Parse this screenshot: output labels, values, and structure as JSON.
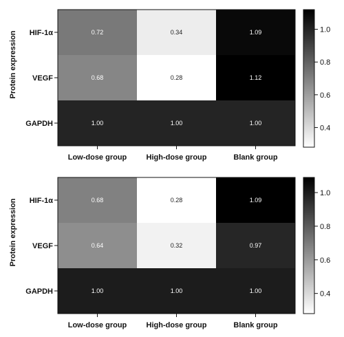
{
  "chart_data": [
    {
      "type": "heatmap",
      "ylabel": "Protein expression",
      "rows": [
        "HIF-1α",
        "VEGF",
        "GAPDH"
      ],
      "columns": [
        "Low-dose group",
        "High-dose group",
        "Blank group"
      ],
      "values": [
        [
          0.72,
          0.34,
          1.09
        ],
        [
          0.68,
          0.28,
          1.12
        ],
        [
          1.0,
          1.0,
          1.0
        ]
      ],
      "value_labels": [
        [
          "0.72",
          "0.34",
          "1.09"
        ],
        [
          "0.68",
          "0.28",
          "1.12"
        ],
        [
          "1.00",
          "1.00",
          "1.00"
        ]
      ],
      "colorbar": {
        "ticks": [
          "0.4",
          "0.6",
          "0.8",
          "1.0"
        ],
        "range": [
          0.28,
          1.12
        ],
        "low_color": "#ffffff",
        "high_color": "#000000"
      }
    },
    {
      "type": "heatmap",
      "ylabel": "Protein expression",
      "rows": [
        "HIF-1α",
        "VEGF",
        "GAPDH"
      ],
      "columns": [
        "Low-dose group",
        "High-dose group",
        "Blank group"
      ],
      "values": [
        [
          0.68,
          0.28,
          1.09
        ],
        [
          0.64,
          0.32,
          0.97
        ],
        [
          1.0,
          1.0,
          1.0
        ]
      ],
      "value_labels": [
        [
          "0.68",
          "0.28",
          "1.09"
        ],
        [
          "0.64",
          "0.32",
          "0.97"
        ],
        [
          "1.00",
          "1.00",
          "1.00"
        ]
      ],
      "colorbar": {
        "ticks": [
          "0.4",
          "0.6",
          "0.8",
          "1.0"
        ],
        "range": [
          0.28,
          1.09
        ],
        "low_color": "#ffffff",
        "high_color": "#000000"
      }
    }
  ]
}
